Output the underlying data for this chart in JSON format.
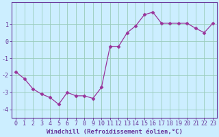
{
  "xlabel": "Windchill (Refroidissement éolien,°C)",
  "x": [
    0,
    1,
    2,
    3,
    4,
    5,
    6,
    7,
    8,
    9,
    10,
    11,
    12,
    13,
    14,
    15,
    16,
    17,
    18,
    19,
    20,
    21,
    22,
    23
  ],
  "y": [
    -1.8,
    -2.2,
    -2.8,
    -3.1,
    -3.3,
    -3.7,
    -3.0,
    -3.2,
    -3.2,
    -3.35,
    -2.7,
    -0.3,
    -0.3,
    0.5,
    0.9,
    1.55,
    1.7,
    1.05,
    1.05,
    1.05,
    1.05,
    0.75,
    0.5,
    1.05
  ],
  "line_color": "#993399",
  "marker": "D",
  "marker_size": 2.5,
  "bg_color": "#cceeff",
  "grid_color": "#99ccbb",
  "axis_color": "#663399",
  "tick_color": "#663399",
  "ylim": [
    -4.5,
    2.3
  ],
  "xlim": [
    -0.5,
    23.5
  ],
  "yticks": [
    -4,
    -3,
    -2,
    -1,
    0,
    1
  ],
  "xticks": [
    0,
    1,
    2,
    3,
    4,
    5,
    6,
    7,
    8,
    9,
    10,
    11,
    12,
    13,
    14,
    15,
    16,
    17,
    18,
    19,
    20,
    21,
    22,
    23
  ],
  "label_fontsize": 6.5,
  "tick_fontsize": 6.0
}
